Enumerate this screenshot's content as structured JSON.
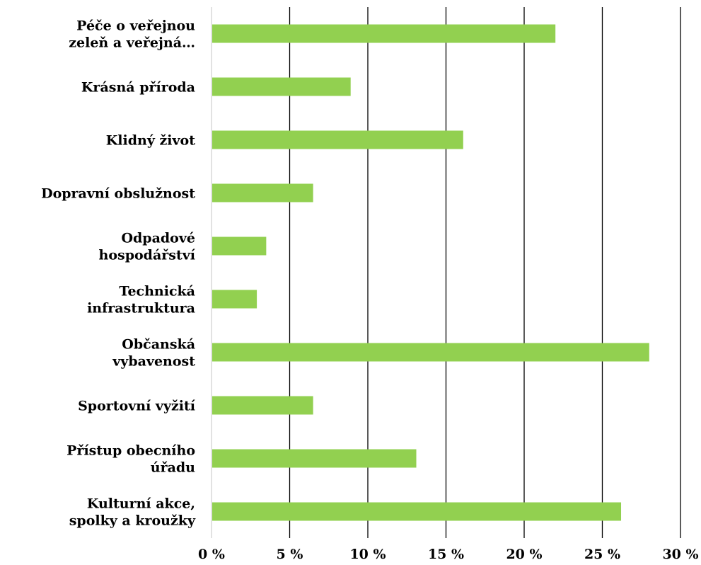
{
  "chart_data": {
    "type": "bar",
    "orientation": "horizontal",
    "title": "",
    "xlabel": "",
    "ylabel": "",
    "categories": [
      [
        "Péče o veřejnou",
        "zeleň a veřejná…"
      ],
      [
        "Krásná příroda"
      ],
      [
        "Klidný život"
      ],
      [
        "Dopravní obslužnost"
      ],
      [
        "Odpadové",
        "hospodářství"
      ],
      [
        "Technická",
        "infrastruktura"
      ],
      [
        "Občanská",
        "vybavenost"
      ],
      [
        "Sportovní vyžití"
      ],
      [
        "Přístup obecního",
        "úřadu"
      ],
      [
        "Kulturní akce,",
        "spolky a kroužky"
      ]
    ],
    "values": [
      22,
      8.9,
      16.1,
      6.5,
      3.5,
      2.9,
      28,
      6.5,
      13.1,
      26.2
    ],
    "xlim": [
      0,
      30
    ],
    "xticks": [
      0,
      5,
      10,
      15,
      20,
      25,
      30
    ],
    "xtick_labels": [
      "0 %",
      "5 %",
      "10 %",
      "15 %",
      "20 %",
      "25 %",
      "30 %"
    ],
    "grid": "vertical",
    "legend": "none",
    "colors": {
      "bar": "#92d050",
      "grid": "#000000",
      "axis": "#d9d9d9"
    }
  }
}
